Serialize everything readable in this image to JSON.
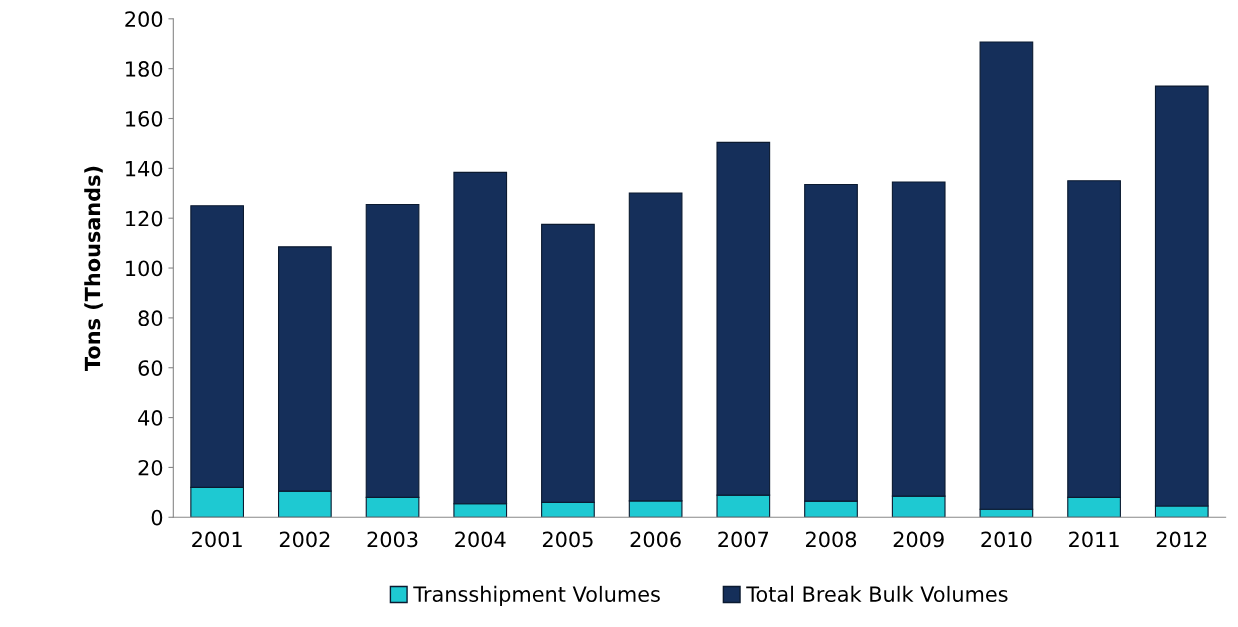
{
  "chart_data": {
    "type": "bar",
    "stacked": true,
    "ylabel": "Tons (Thousands)",
    "categories": [
      "2001",
      "2002",
      "2003",
      "2004",
      "2005",
      "2006",
      "2007",
      "2008",
      "2009",
      "2010",
      "2011",
      "2012"
    ],
    "series": [
      {
        "name": "Transshipment Volumes",
        "color": "#1ec9d2",
        "values": [
          12,
          10.5,
          8,
          5.4,
          6,
          6.6,
          8.9,
          6.5,
          8.5,
          3.2,
          8,
          4.5
        ]
      },
      {
        "name": "Total Break Bulk Volumes",
        "color": "#152f5a",
        "values": [
          113,
          98,
          117.5,
          133,
          111.5,
          123.5,
          141.5,
          127,
          126,
          187.5,
          127,
          168.5
        ]
      }
    ],
    "ylim": [
      0,
      200
    ],
    "yticks": [
      0,
      20,
      40,
      60,
      80,
      100,
      120,
      140,
      160,
      180,
      200
    ],
    "grid": false,
    "legend": "bottom"
  }
}
